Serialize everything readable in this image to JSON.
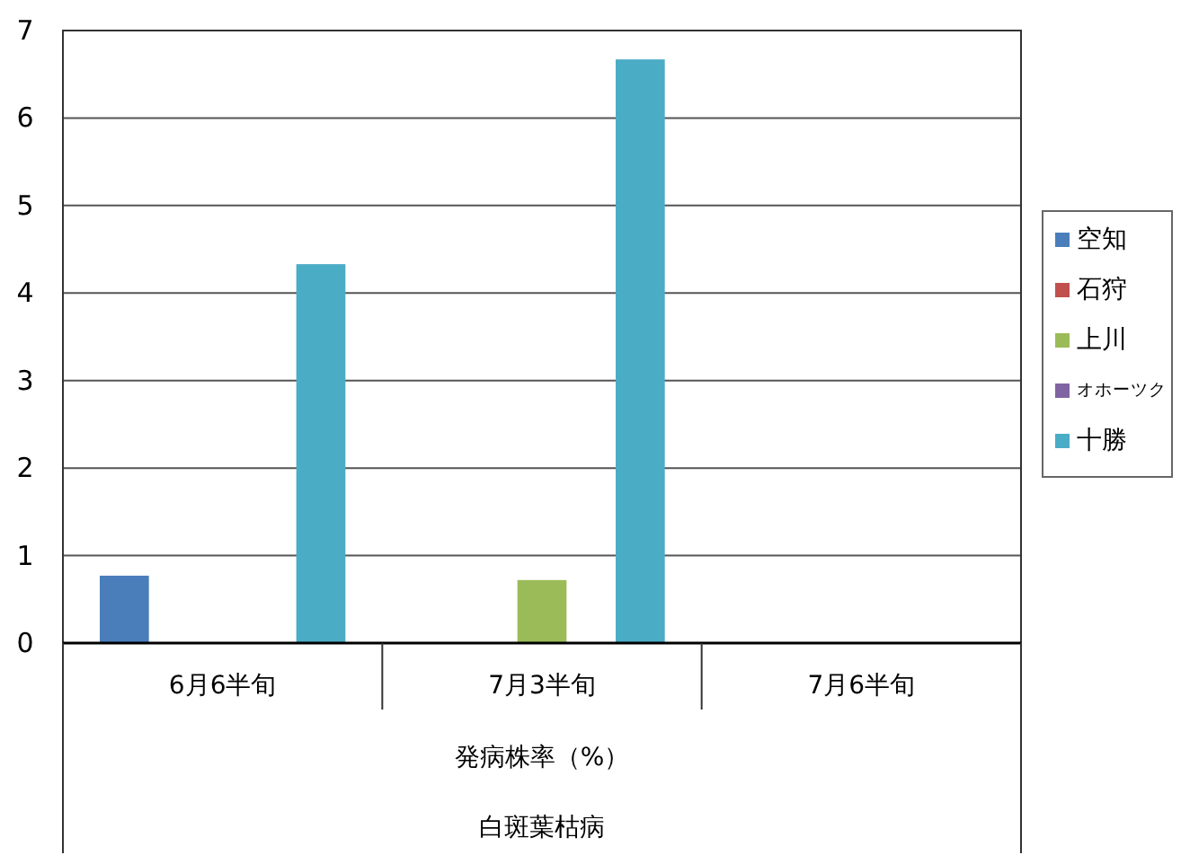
{
  "chart_data": {
    "type": "bar",
    "categories": [
      "6月6半旬",
      "7月3半旬",
      "7月6半旬"
    ],
    "series": [
      {
        "name": "空知",
        "color": "#4a7ebb",
        "values": [
          0.77,
          null,
          null
        ]
      },
      {
        "name": "石狩",
        "color": "#c0504d",
        "values": [
          null,
          null,
          null
        ]
      },
      {
        "name": "上川",
        "color": "#9bbb59",
        "values": [
          null,
          0.72,
          null
        ]
      },
      {
        "name": "オホーツク",
        "color": "#8064a2",
        "values": [
          null,
          null,
          null
        ]
      },
      {
        "name": "十勝",
        "color": "#4bacc6",
        "values": [
          4.33,
          6.67,
          null
        ]
      }
    ],
    "ylim": [
      0,
      7
    ],
    "yticks": [
      0,
      1,
      2,
      3,
      4,
      5,
      6,
      7
    ],
    "xlabel": "発病株率（%）",
    "annotations": [
      "白斑葉枯病"
    ],
    "grid": "y",
    "legend": "right"
  }
}
